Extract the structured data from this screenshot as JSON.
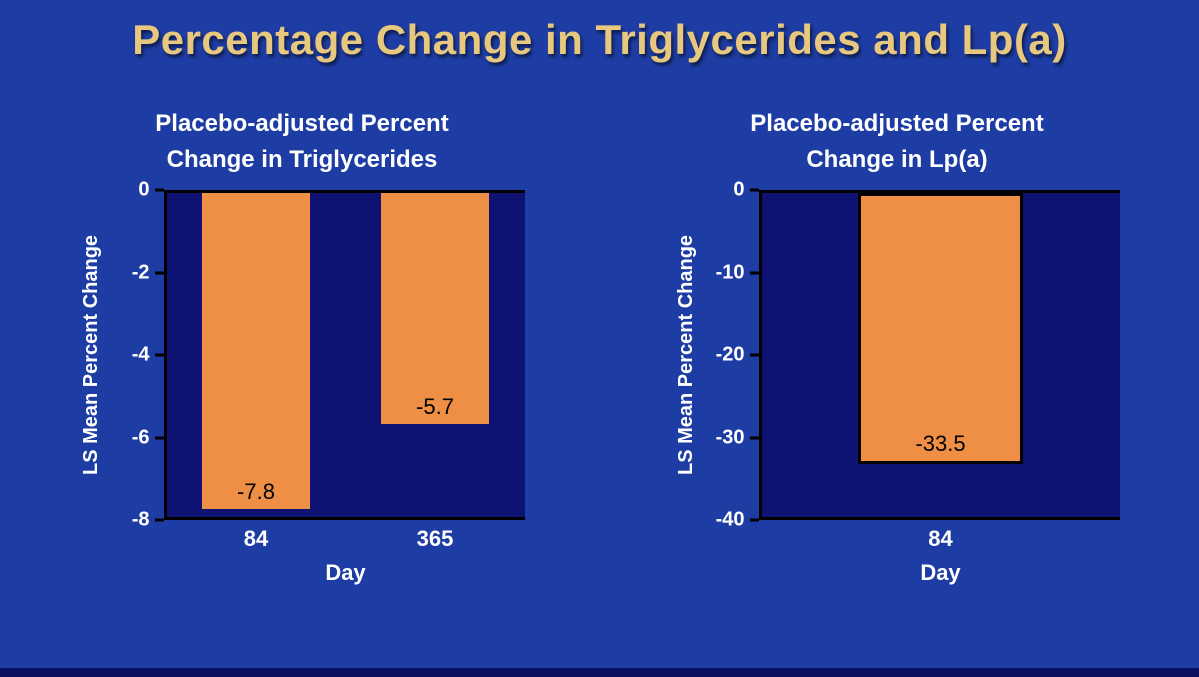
{
  "slide": {
    "title": "Percentage Change in Triglycerides and Lp(a)",
    "colors": {
      "background": "#1e3da4",
      "plot_background": "#0e1273",
      "bar_orange": "#ef8f45",
      "title_gold": "#e8c87e",
      "text_white": "#ffffff",
      "axis_black": "#000000"
    }
  },
  "chart_data": [
    {
      "type": "bar",
      "title": "Placebo-adjusted Percent Change in Triglycerides",
      "xlabel": "Day",
      "ylabel": "LS Mean Percent Change",
      "categories": [
        "84",
        "365"
      ],
      "values": [
        -7.8,
        -5.7
      ],
      "labels": [
        "-7.8",
        "-5.7"
      ],
      "ylim": [
        -8,
        0
      ],
      "yticks": [
        0,
        -2,
        -4,
        -6,
        -8
      ],
      "bar_color": "#ef8f45",
      "bar_border": null,
      "grid": false,
      "legend": false
    },
    {
      "type": "bar",
      "title": "Placebo-adjusted Percent Change in Lp(a)",
      "xlabel": "Day",
      "ylabel": "LS Mean Percent Change",
      "categories": [
        "84"
      ],
      "values": [
        -33.5
      ],
      "labels": [
        "-33.5"
      ],
      "ylim": [
        -40,
        0
      ],
      "yticks": [
        0,
        -10,
        -20,
        -30,
        -40
      ],
      "bar_color": "#ef8f45",
      "bar_border": "#000000",
      "grid": false,
      "legend": false
    }
  ]
}
